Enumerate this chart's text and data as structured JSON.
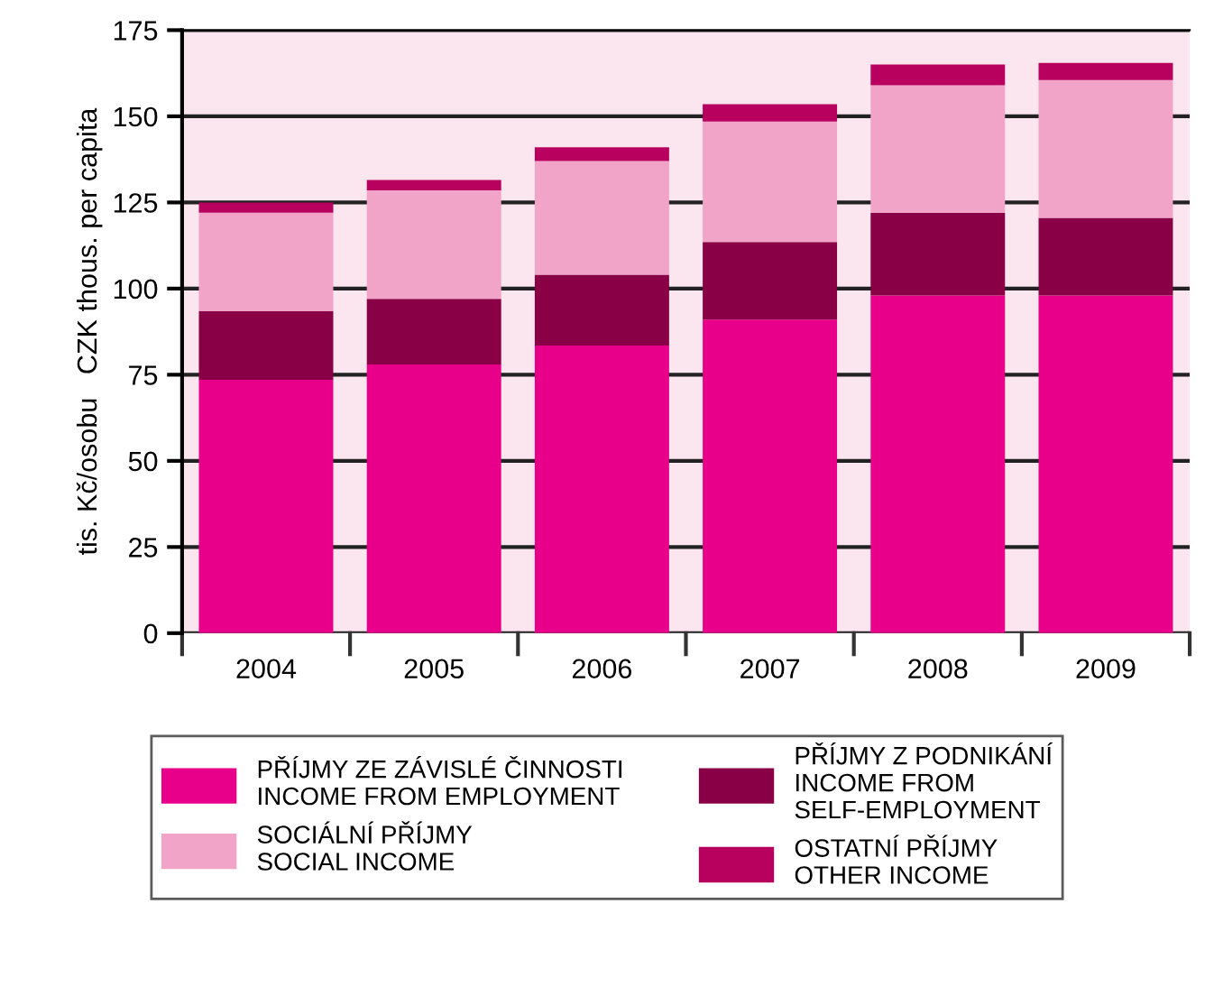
{
  "chart_data": {
    "type": "bar",
    "stacked": true,
    "ylabel": "tis. Kč/osobu   CZK thous. per capita",
    "categories": [
      "2004",
      "2005",
      "2006",
      "2007",
      "2008",
      "2009"
    ],
    "series": [
      {
        "name": "PŘÍJMY ZE ZÁVISLÉ ČINNOSTI\nINCOME FROM EMPLOYMENT",
        "color": "#e8008a",
        "values": [
          73.5,
          78,
          83.5,
          91,
          98,
          98
        ]
      },
      {
        "name": "PŘÍJMY Z PODNIKÁNÍ\nINCOME FROM\nSELF-EMPLOYMENT",
        "color": "#8a0046",
        "values": [
          20,
          19,
          20.5,
          22.5,
          24,
          22.5
        ]
      },
      {
        "name": "SOCIÁLNÍ PŘÍJMY\nSOCIAL INCOME",
        "color": "#f2a3c8",
        "values": [
          28.5,
          31.5,
          33,
          35,
          37,
          40
        ]
      },
      {
        "name": "OSTATNÍ PŘÍJMY\nOTHER INCOME",
        "color": "#b8005f",
        "values": [
          3,
          3,
          4,
          5,
          6,
          5
        ]
      }
    ],
    "ylim": [
      0,
      175
    ],
    "yticks": [
      0,
      25,
      50,
      75,
      100,
      125,
      150,
      175
    ],
    "grid": "y",
    "legend": "bottom"
  }
}
